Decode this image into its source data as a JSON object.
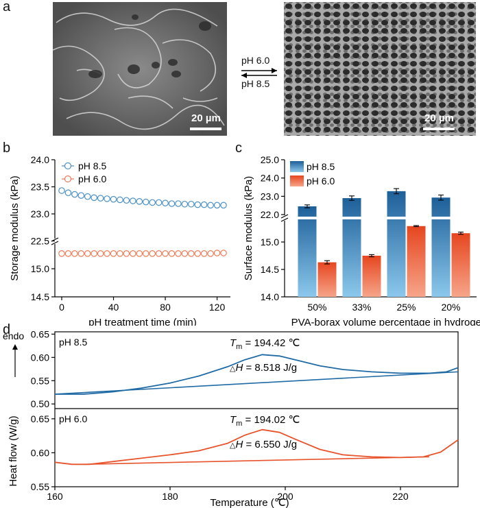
{
  "panel_a": {
    "letter": "a",
    "left_scalebar": "20 µm",
    "right_scalebar": "20 µm",
    "arrow_top_label": "pH 6.0",
    "arrow_bottom_label": "pH 8.5"
  },
  "chart_data": [
    {
      "panel": "b",
      "type": "scatter",
      "xlabel": "pH treatment time (min)",
      "ylabel": "Storage modulus (kPa)",
      "x_ticks": [
        "0",
        "40",
        "80",
        "120"
      ],
      "y_ticks_upper": [
        "23.0",
        "23.5",
        "24.0"
      ],
      "y_ticks_lower": [
        "14.5",
        "15.0",
        "22.5"
      ],
      "ylim_upper": [
        22.5,
        24.0
      ],
      "ylim_lower": [
        14.5,
        15.5
      ],
      "series": [
        {
          "name": "pH 8.5",
          "color": "#4a90c8",
          "x": [
            0,
            5,
            10,
            15,
            20,
            25,
            30,
            35,
            40,
            45,
            50,
            55,
            60,
            65,
            70,
            75,
            80,
            85,
            90,
            95,
            100,
            105,
            110,
            115,
            120,
            125
          ],
          "values": [
            23.43,
            23.39,
            23.36,
            23.34,
            23.32,
            23.3,
            23.29,
            23.28,
            23.27,
            23.26,
            23.25,
            23.24,
            23.23,
            23.22,
            23.21,
            23.21,
            23.2,
            23.19,
            23.19,
            23.18,
            23.18,
            23.17,
            23.17,
            23.16,
            23.16,
            23.16
          ]
        },
        {
          "name": "pH 6.0",
          "color": "#f07a55",
          "x": [
            0,
            5,
            10,
            15,
            20,
            25,
            30,
            35,
            40,
            45,
            50,
            55,
            60,
            65,
            70,
            75,
            80,
            85,
            90,
            95,
            100,
            105,
            110,
            115,
            120,
            125
          ],
          "values": [
            15.27,
            15.27,
            15.27,
            15.27,
            15.27,
            15.27,
            15.27,
            15.27,
            15.27,
            15.27,
            15.27,
            15.27,
            15.27,
            15.27,
            15.27,
            15.27,
            15.27,
            15.27,
            15.27,
            15.27,
            15.27,
            15.27,
            15.27,
            15.27,
            15.28,
            15.28
          ]
        }
      ]
    },
    {
      "panel": "c",
      "type": "bar",
      "xlabel": "PVA-borax volume percentage in hydrogel",
      "ylabel": "Surface modulus (kPa)",
      "categories": [
        "50%",
        "33%",
        "25%",
        "20%"
      ],
      "y_ticks_upper": [
        "22.0",
        "23.0",
        "24.0",
        "25.0"
      ],
      "y_ticks_lower": [
        "14.0",
        "14.5",
        "15.0"
      ],
      "series": [
        {
          "name": "pH 8.5",
          "color": "#1f6aa5",
          "values": [
            22.45,
            22.9,
            23.28,
            22.93
          ],
          "errors": [
            0.08,
            0.12,
            0.14,
            0.14
          ]
        },
        {
          "name": "pH 6.0",
          "color": "#e8522a",
          "values": [
            14.63,
            14.75,
            15.29,
            15.16
          ],
          "errors": [
            0.03,
            0.02,
            0.01,
            0.02
          ]
        }
      ]
    },
    {
      "panel": "d",
      "type": "line",
      "xlabel": "Temperature (℃)",
      "ylabel": "Heat flow (W/g)",
      "endo_label": "endo",
      "x_ticks": [
        "160",
        "180",
        "200",
        "220"
      ],
      "xlim": [
        160,
        230
      ],
      "subplots": [
        {
          "label": "pH 8.5",
          "color": "#1f6aa5",
          "y_ticks": [
            "0.50",
            "0.55",
            "0.60",
            "0.65"
          ],
          "ylim": [
            0.49,
            0.655
          ],
          "tm_label": "T",
          "tm_sub": "m",
          "tm_value": "= 194.42 ℃",
          "dh_prefix": "△",
          "dh_label": "H",
          "dh_value": "= 8.518 J/g",
          "curve_x": [
            160,
            165,
            170,
            175,
            180,
            185,
            190,
            193,
            196,
            199,
            202,
            206,
            210,
            215,
            220,
            225,
            228,
            230
          ],
          "curve_y": [
            0.521,
            0.521,
            0.526,
            0.534,
            0.545,
            0.56,
            0.58,
            0.595,
            0.606,
            0.603,
            0.594,
            0.582,
            0.574,
            0.569,
            0.566,
            0.566,
            0.569,
            0.578
          ],
          "base_x": [
            160,
            230
          ],
          "base_y": [
            0.521,
            0.569
          ]
        },
        {
          "label": "pH 6.0",
          "color": "#e8522a",
          "y_ticks": [
            "0.55",
            "0.60",
            "0.65"
          ],
          "ylim": [
            0.55,
            0.665
          ],
          "tm_label": "T",
          "tm_sub": "m",
          "tm_value": "= 194.02 ℃",
          "dh_prefix": "△",
          "dh_label": "H",
          "dh_value": "= 6.550 J/g",
          "curve_x": [
            160,
            163,
            166,
            170,
            175,
            180,
            185,
            190,
            193,
            196,
            199,
            202,
            206,
            210,
            215,
            220,
            224,
            227,
            230
          ],
          "curve_y": [
            0.586,
            0.583,
            0.583,
            0.587,
            0.592,
            0.597,
            0.603,
            0.614,
            0.626,
            0.634,
            0.63,
            0.619,
            0.605,
            0.597,
            0.594,
            0.593,
            0.594,
            0.601,
            0.619
          ],
          "base_x": [
            165,
            225
          ],
          "base_y": [
            0.583,
            0.594
          ]
        }
      ]
    }
  ]
}
